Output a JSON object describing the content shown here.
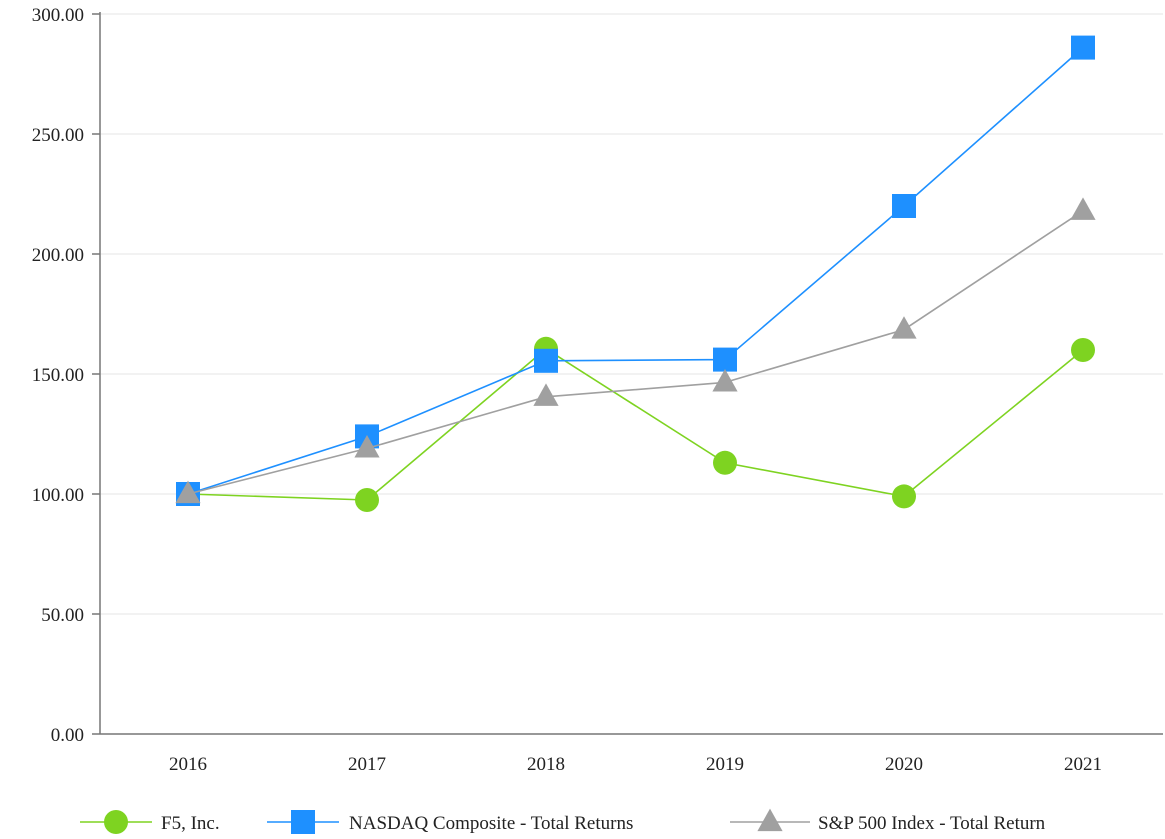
{
  "chart_data": {
    "type": "line",
    "categories": [
      "2016",
      "2017",
      "2018",
      "2019",
      "2020",
      "2021"
    ],
    "ylim": [
      0,
      300
    ],
    "y_ticks": [
      "0.00",
      "50.00",
      "100.00",
      "150.00",
      "200.00",
      "250.00",
      "300.00"
    ],
    "grid": "horizontal",
    "legend_position": "bottom",
    "series": [
      {
        "name": "F5, Inc.",
        "marker": "circle",
        "color": "#7ED321",
        "values": [
          100.0,
          97.5,
          160.5,
          113.0,
          99.0,
          160.0
        ]
      },
      {
        "name": "NASDAQ Composite - Total Returns",
        "marker": "square",
        "color": "#1E90FF",
        "values": [
          100.0,
          124.0,
          155.5,
          156.0,
          220.0,
          286.0
        ]
      },
      {
        "name": "S&P 500 Index - Total Return",
        "marker": "triangle",
        "color": "#A0A0A0",
        "values": [
          100.0,
          119.0,
          140.5,
          146.5,
          168.5,
          218.0
        ]
      }
    ]
  }
}
